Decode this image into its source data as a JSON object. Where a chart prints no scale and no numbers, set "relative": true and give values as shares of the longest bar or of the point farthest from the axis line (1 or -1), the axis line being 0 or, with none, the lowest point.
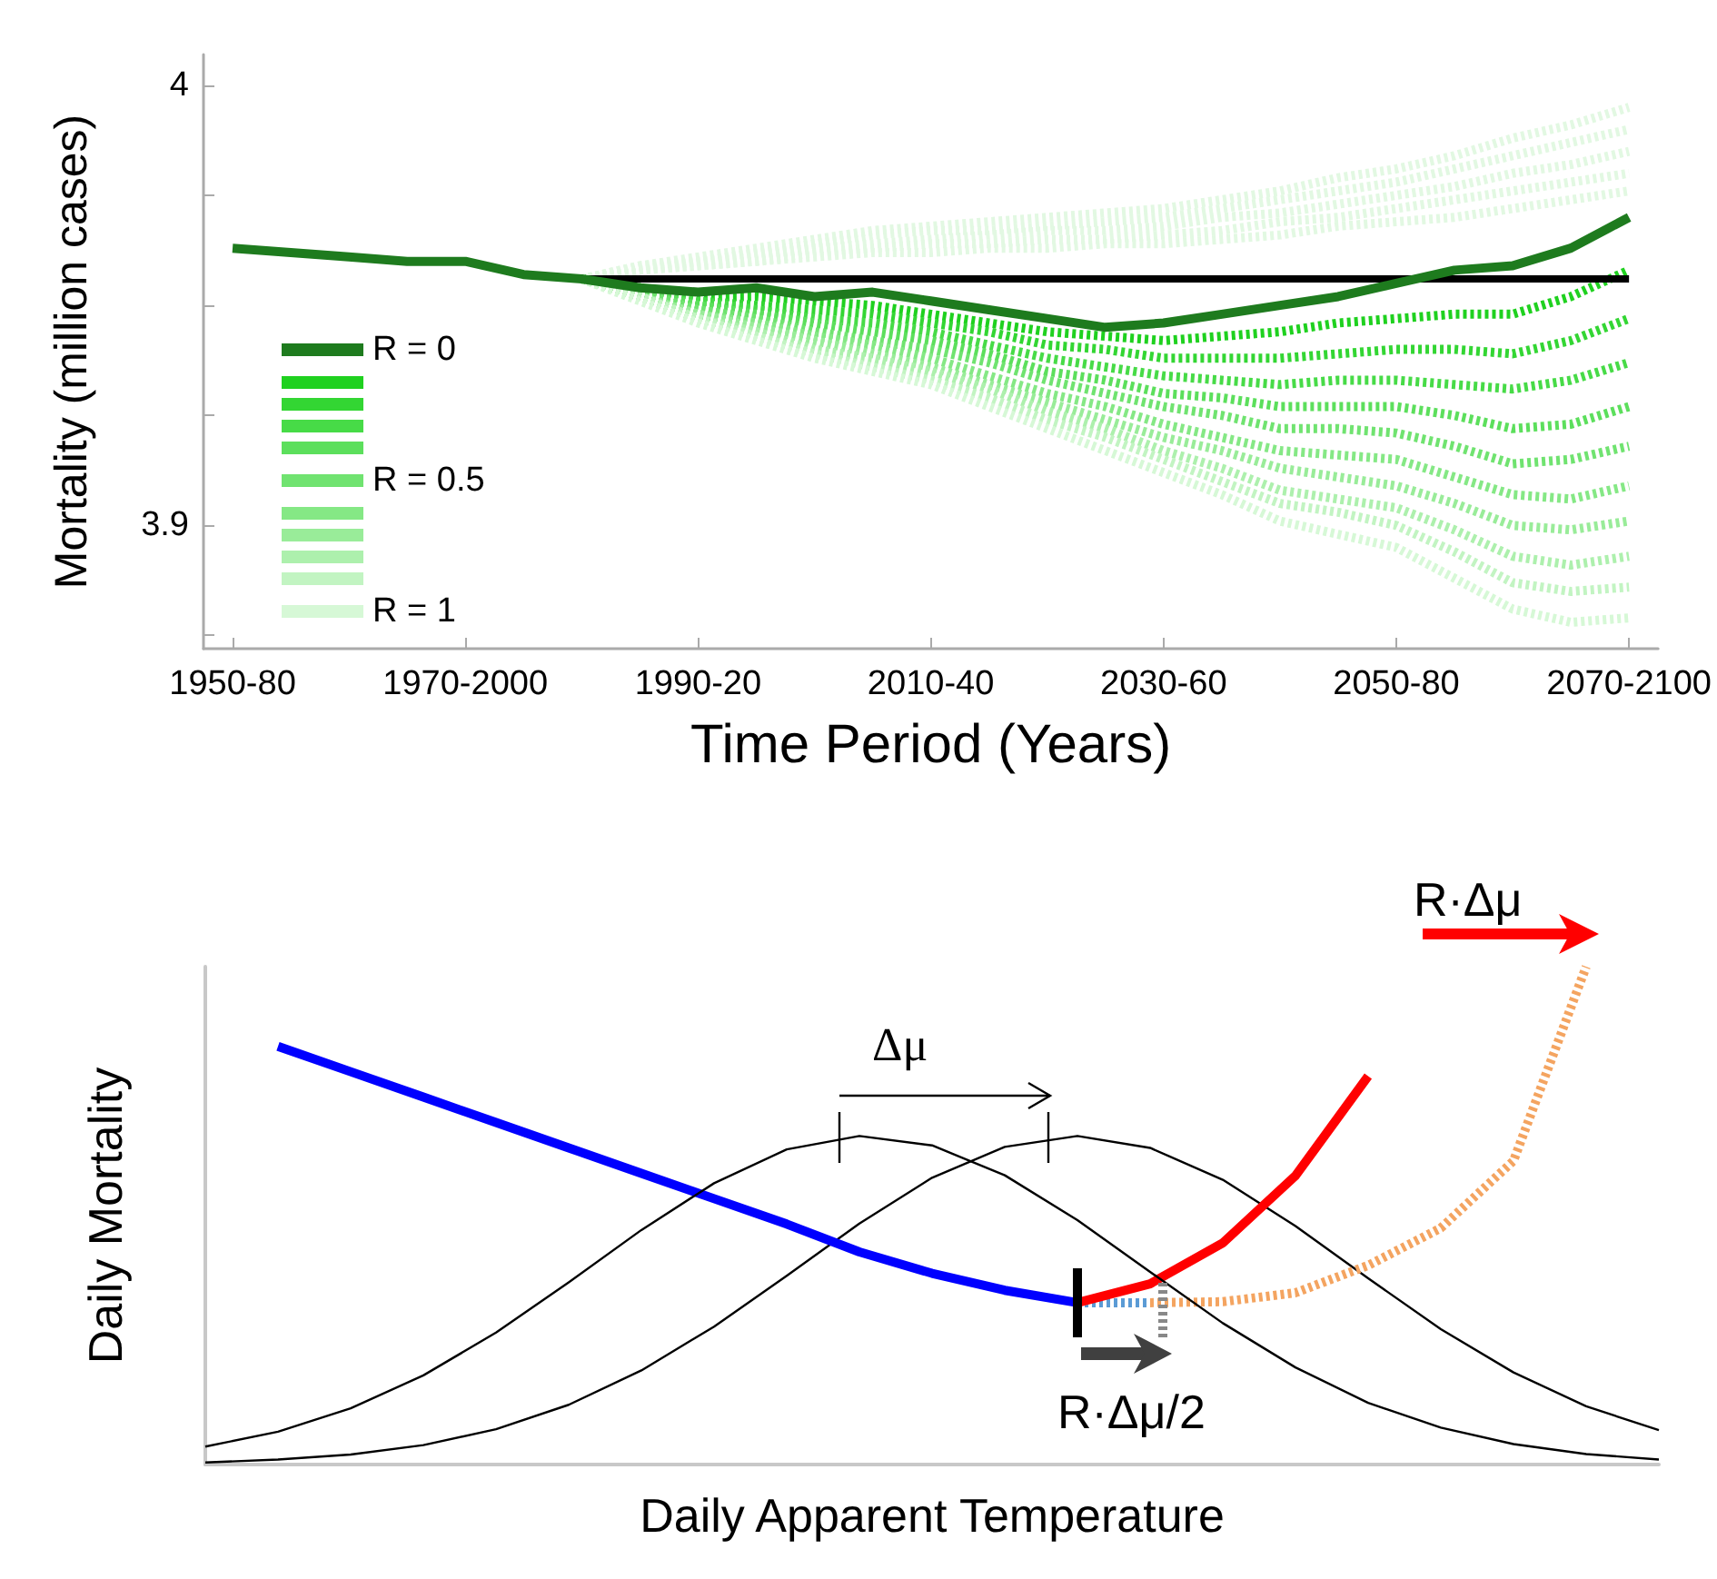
{
  "chart_data": [
    {
      "type": "line",
      "xlabel": "Time Period (Years)",
      "ylabel": "Mortality (million cases)",
      "categories": [
        "1950-80",
        null,
        null,
        null,
        "1970-2000",
        null,
        null,
        null,
        "1990-20",
        null,
        null,
        null,
        "2010-40",
        null,
        null,
        null,
        "2030-60",
        null,
        null,
        null,
        "2050-80",
        null,
        null,
        null,
        "2070-2100"
      ],
      "ylim": [
        3.872,
        4.007
      ],
      "yticks": [
        4,
        {
          "value": 3.975,
          "label": null
        },
        {
          "value": 3.95,
          "label": null
        },
        {
          "value": 3.925,
          "label": null
        },
        3.9,
        {
          "value": 3.875,
          "label": null
        }
      ],
      "legend": "left",
      "marker": "none",
      "series": [
        {
          "name": "R = 0",
          "color": "#1e7b1e",
          "line_style": "solid",
          "values": [
            3.963,
            3.962,
            3.961,
            3.96,
            3.96,
            3.957,
            3.956,
            3.954,
            3.953,
            3.954,
            3.952,
            3.953,
            3.951,
            3.949,
            3.947,
            3.945,
            3.946,
            3.948,
            3.95,
            3.952,
            3.955,
            3.958,
            3.959,
            3.963,
            3.97
          ]
        },
        {
          "color": "#1fd11f",
          "line_style": "dotted",
          "values": [
            null,
            null,
            null,
            null,
            null,
            null,
            3.956,
            3.954,
            3.952,
            3.952,
            3.951,
            3.95,
            3.948,
            3.946,
            3.944,
            3.943,
            3.942,
            3.943,
            3.944,
            3.946,
            3.947,
            3.948,
            3.948,
            3.952,
            3.958
          ]
        },
        {
          "color": "#33d633",
          "line_style": "dotted",
          "values": [
            null,
            null,
            null,
            null,
            null,
            null,
            3.956,
            3.954,
            3.951,
            3.95,
            3.949,
            3.948,
            3.946,
            3.944,
            3.941,
            3.94,
            3.938,
            3.938,
            3.938,
            3.939,
            3.94,
            3.94,
            3.939,
            3.942,
            3.947
          ]
        },
        {
          "color": "#47db47",
          "line_style": "dotted",
          "values": [
            null,
            null,
            null,
            null,
            null,
            null,
            3.956,
            3.954,
            3.951,
            3.949,
            3.947,
            3.946,
            3.944,
            3.941,
            3.938,
            3.936,
            3.934,
            3.933,
            3.932,
            3.933,
            3.933,
            3.932,
            3.931,
            3.933,
            3.937
          ]
        },
        {
          "color": "#5cdf5c",
          "line_style": "dotted",
          "values": [
            null,
            null,
            null,
            null,
            null,
            null,
            3.956,
            3.953,
            3.95,
            3.948,
            3.946,
            3.944,
            3.942,
            3.939,
            3.935,
            3.933,
            3.93,
            3.929,
            3.927,
            3.927,
            3.927,
            3.925,
            3.922,
            3.923,
            3.927
          ]
        },
        {
          "name": "R = 0.5",
          "color": "#70e370",
          "line_style": "dotted",
          "values": [
            null,
            null,
            null,
            null,
            null,
            null,
            3.956,
            3.953,
            3.949,
            3.947,
            3.944,
            3.942,
            3.94,
            3.937,
            3.933,
            3.93,
            3.927,
            3.925,
            3.922,
            3.922,
            3.921,
            3.918,
            3.914,
            3.915,
            3.918
          ]
        },
        {
          "color": "#85e885",
          "line_style": "dotted",
          "values": [
            null,
            null,
            null,
            null,
            null,
            null,
            3.956,
            3.952,
            3.948,
            3.946,
            3.943,
            3.941,
            3.938,
            3.934,
            3.93,
            3.927,
            3.923,
            3.92,
            3.917,
            3.916,
            3.915,
            3.911,
            3.907,
            3.906,
            3.909
          ]
        },
        {
          "color": "#99ec99",
          "line_style": "dotted",
          "values": [
            null,
            null,
            null,
            null,
            null,
            null,
            3.956,
            3.952,
            3.948,
            3.945,
            3.942,
            3.939,
            3.936,
            3.932,
            3.928,
            3.924,
            3.92,
            3.917,
            3.913,
            3.911,
            3.909,
            3.905,
            3.9,
            3.899,
            3.901
          ]
        },
        {
          "color": "#adf0ad",
          "line_style": "dotted",
          "values": [
            null,
            null,
            null,
            null,
            null,
            null,
            3.956,
            3.952,
            3.947,
            3.944,
            3.94,
            3.938,
            3.935,
            3.931,
            3.926,
            3.922,
            3.917,
            3.913,
            3.908,
            3.906,
            3.904,
            3.899,
            3.893,
            3.891,
            3.893
          ]
        },
        {
          "color": "#c2f4c2",
          "line_style": "dotted",
          "values": [
            null,
            null,
            null,
            null,
            null,
            null,
            3.956,
            3.952,
            3.947,
            3.943,
            3.939,
            3.936,
            3.933,
            3.929,
            3.924,
            3.92,
            3.915,
            3.91,
            3.905,
            3.903,
            3.9,
            3.894,
            3.887,
            3.885,
            3.886
          ]
        },
        {
          "name": "R = 1",
          "color": "#d6f8d6",
          "line_style": "dotted",
          "values": [
            null,
            null,
            null,
            null,
            null,
            null,
            3.956,
            3.951,
            3.946,
            3.942,
            3.938,
            3.935,
            3.932,
            3.927,
            3.922,
            3.917,
            3.912,
            3.907,
            3.901,
            3.898,
            3.895,
            3.888,
            3.881,
            3.878,
            3.879
          ]
        },
        {
          "color": "#e2f8e2",
          "line_style": "dotted",
          "values": [
            null,
            null,
            null,
            null,
            null,
            null,
            3.956,
            3.958,
            3.959,
            3.96,
            3.961,
            3.962,
            3.962,
            3.963,
            3.963,
            3.964,
            3.964,
            3.965,
            3.966,
            3.968,
            3.969,
            3.97,
            3.972,
            3.974,
            3.976
          ]
        },
        {
          "color": "#e2f8e2",
          "line_style": "dotted",
          "values": [
            null,
            null,
            null,
            null,
            null,
            null,
            3.956,
            3.958,
            3.959,
            3.96,
            3.962,
            3.963,
            3.964,
            3.964,
            3.965,
            3.965,
            3.966,
            3.967,
            3.969,
            3.97,
            3.972,
            3.974,
            3.976,
            3.978,
            3.98
          ]
        },
        {
          "color": "#e2f8e2",
          "line_style": "dotted",
          "values": [
            null,
            null,
            null,
            null,
            null,
            null,
            3.956,
            3.958,
            3.96,
            3.961,
            3.963,
            3.964,
            3.965,
            3.966,
            3.967,
            3.967,
            3.968,
            3.97,
            3.971,
            3.973,
            3.975,
            3.977,
            3.98,
            3.982,
            3.985
          ]
        },
        {
          "color": "#e2f8e2",
          "line_style": "dotted",
          "values": [
            null,
            null,
            null,
            null,
            null,
            null,
            3.956,
            3.959,
            3.96,
            3.962,
            3.964,
            3.966,
            3.967,
            3.967,
            3.968,
            3.969,
            3.97,
            3.972,
            3.974,
            3.976,
            3.978,
            3.981,
            3.984,
            3.987,
            3.99
          ]
        },
        {
          "color": "#e2f8e2",
          "line_style": "dotted",
          "values": [
            null,
            null,
            null,
            null,
            null,
            null,
            3.956,
            3.959,
            3.961,
            3.963,
            3.965,
            3.967,
            3.968,
            3.969,
            3.97,
            3.971,
            3.972,
            3.974,
            3.976,
            3.979,
            3.981,
            3.984,
            3.988,
            3.991,
            3.995
          ]
        },
        {
          "color": "#000000",
          "line_style": "solid",
          "values": [
            null,
            null,
            null,
            null,
            null,
            null,
            3.956,
            3.956,
            3.956,
            3.956,
            3.956,
            3.956,
            3.956,
            3.956,
            3.956,
            3.956,
            3.956,
            3.956,
            3.956,
            3.956,
            3.956,
            3.956,
            3.956,
            3.956,
            3.956
          ]
        }
      ]
    },
    {
      "type": "line",
      "relative": true,
      "xlabel": "Daily Apparent Temperature",
      "ylabel": "Daily Mortality",
      "marker": "none",
      "annotations": [
        "Δμ",
        "R·Δμ",
        "R·Δμ/2"
      ],
      "categories": [
        null,
        null,
        null,
        null,
        null,
        null,
        null,
        null,
        null,
        null,
        null,
        null,
        null,
        null,
        null,
        null,
        null,
        null,
        null,
        null,
        null
      ],
      "series": [
        {
          "color": "#000000",
          "values": [
            0.036,
            0.066,
            0.113,
            0.179,
            0.265,
            0.366,
            0.471,
            0.565,
            0.633,
            0.66,
            0.641,
            0.581,
            0.491,
            0.387,
            0.284,
            0.195,
            0.124,
            0.074,
            0.041,
            0.021,
            0.01
          ]
        },
        {
          "color": "#000000",
          "values": [
            0.004,
            0.01,
            0.02,
            0.039,
            0.071,
            0.12,
            0.189,
            0.277,
            0.379,
            0.484,
            0.576,
            0.638,
            0.66,
            0.636,
            0.572,
            0.479,
            0.374,
            0.272,
            0.185,
            0.117,
            0.069
          ]
        },
        {
          "color": "#0000ff",
          "line_style": "solid",
          "values": [
            null,
            0.84,
            0.789,
            0.738,
            0.687,
            0.636,
            0.585,
            0.534,
            0.483,
            0.427,
            0.384,
            0.35,
            0.325,
            null,
            null,
            null,
            null,
            null,
            null,
            null,
            null
          ]
        },
        {
          "color": "#5b9bd5",
          "line_style": "dotted",
          "values": [
            null,
            null,
            null,
            null,
            null,
            null,
            null,
            null,
            null,
            null,
            null,
            null,
            0.325,
            0.325,
            null,
            null,
            null,
            null,
            null,
            null,
            null
          ]
        },
        {
          "color": "#ff0000",
          "line_style": "solid",
          "values": [
            null,
            null,
            null,
            null,
            null,
            null,
            null,
            null,
            null,
            null,
            null,
            null,
            0.325,
            0.363,
            0.445,
            0.58,
            0.78,
            null,
            null,
            null,
            null
          ]
        },
        {
          "color": "#f4a460",
          "line_style": "dotted",
          "values": [
            null,
            null,
            null,
            null,
            null,
            null,
            null,
            null,
            null,
            null,
            null,
            null,
            null,
            0.325,
            0.327,
            0.345,
            0.4,
            0.475,
            0.61,
            1,
            null
          ]
        }
      ]
    }
  ]
}
